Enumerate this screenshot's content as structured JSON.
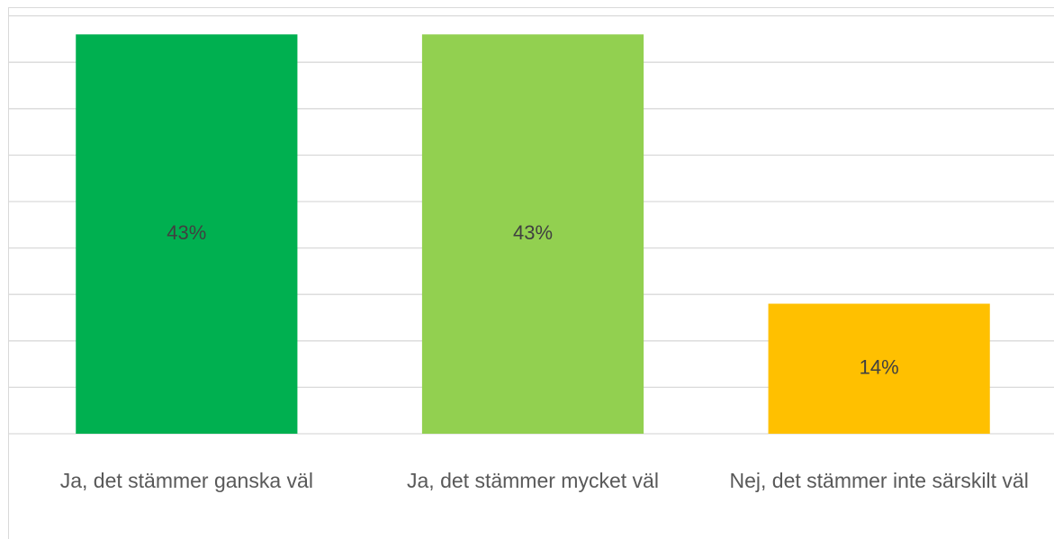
{
  "chart_data": {
    "type": "bar",
    "categories": [
      "Ja, det stämmer ganska väl",
      "Ja, det stämmer mycket väl",
      "Nej, det stämmer inte särskilt väl"
    ],
    "values": [
      43,
      43,
      14
    ],
    "value_labels": [
      "43%",
      "43%",
      "14%"
    ],
    "colors": [
      "#00b050",
      "#92d050",
      "#ffc000"
    ],
    "ylim": [
      0,
      45
    ],
    "yticks": [
      0,
      5,
      10,
      15,
      20,
      25,
      30,
      35,
      40,
      45
    ],
    "grid": true
  }
}
